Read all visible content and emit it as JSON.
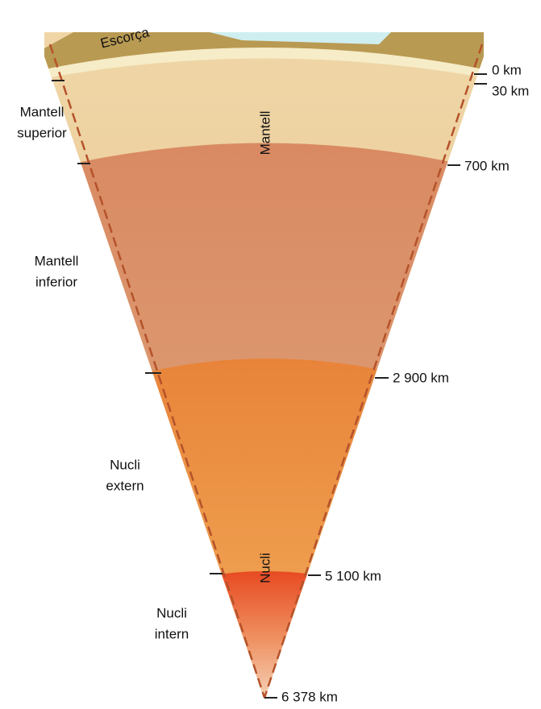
{
  "labels": {
    "crust": "Escorça",
    "mantle": "Mantell",
    "core": "Nucli",
    "upper_mantle": [
      "Mantell",
      "superior"
    ],
    "lower_mantle": [
      "Mantell",
      "inferior"
    ],
    "outer_core": [
      "Nucli",
      "extern"
    ],
    "inner_core": [
      "Nucli",
      "intern"
    ]
  },
  "depths": [
    "0 km",
    "30 km",
    "700 km",
    "2 900 km",
    "5 100 km",
    "6 378 km"
  ]
}
